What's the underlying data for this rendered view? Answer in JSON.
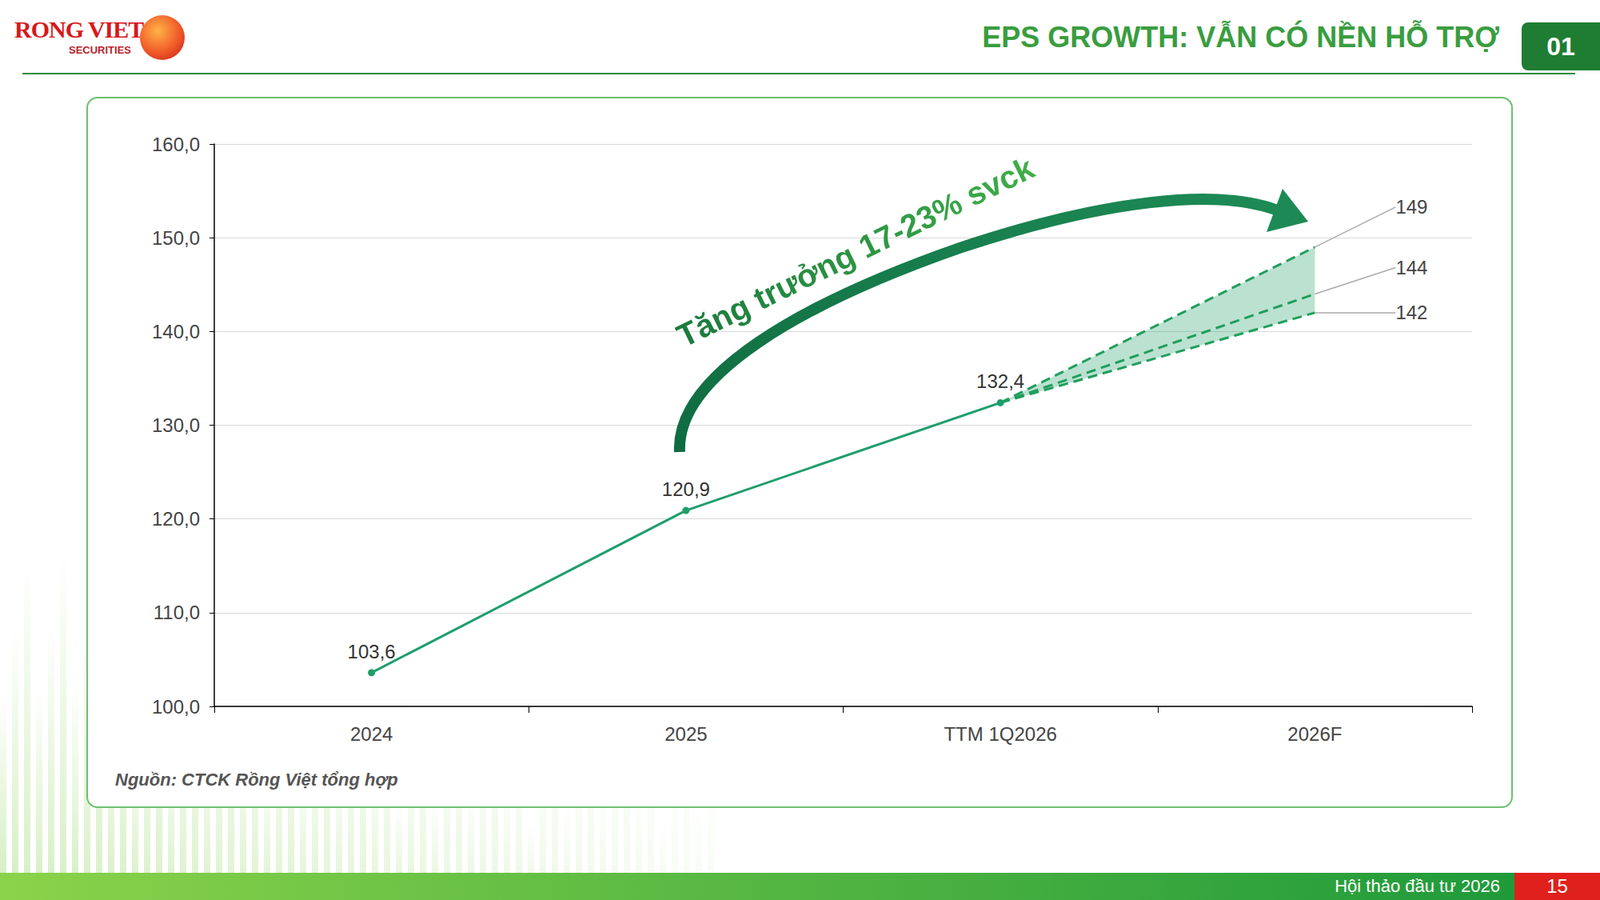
{
  "slide": {
    "logo": {
      "name": "RONG VIET",
      "sub": "SECURITIES"
    },
    "title": "EPS GROWTH: VẪN CÓ NỀN HỖ TRỢ",
    "section": "01",
    "footer": "Hội thảo đầu tư 2026",
    "page": "15"
  },
  "chart_data": {
    "type": "line",
    "categories": [
      "2024",
      "2025",
      "TTM 1Q2026",
      "2026F"
    ],
    "series": [
      {
        "color": "#1f9e6c",
        "values": [
          103.6,
          120.9,
          132.4,
          null
        ],
        "value_labels": [
          "103,6",
          "120,9",
          "132,4",
          null
        ],
        "marker": "circle",
        "line_style": "solid"
      },
      {
        "color": "#1f9e5c",
        "values": [
          null,
          null,
          132.4,
          149
        ],
        "value_labels": [
          null,
          null,
          null,
          "149"
        ],
        "marker": "none",
        "line_style": "dashed"
      },
      {
        "color": "#1f9e5c",
        "values": [
          null,
          null,
          132.4,
          144
        ],
        "value_labels": [
          null,
          null,
          null,
          "144"
        ],
        "marker": "none",
        "line_style": "dashed"
      },
      {
        "color": "#1f9e5c",
        "values": [
          null,
          null,
          132.4,
          142
        ],
        "value_labels": [
          null,
          null,
          null,
          "142"
        ],
        "marker": "none",
        "line_style": "dashed"
      }
    ],
    "ylim": [
      100,
      160
    ],
    "yticks": [
      {
        "value": 100,
        "label": "100,0"
      },
      {
        "value": 110,
        "label": "110,0"
      },
      {
        "value": 120,
        "label": "120,0"
      },
      {
        "value": 130,
        "label": "130,0"
      },
      {
        "value": 140,
        "label": "140,0"
      },
      {
        "value": 150,
        "label": "150,0"
      },
      {
        "value": 160,
        "label": "160,0"
      }
    ],
    "grid": true,
    "data_labels": true,
    "annotations": [
      "Tăng trưởng 17-23% svck"
    ],
    "source": "Nguồn: CTCK Rồng Việt tổng hợp"
  }
}
